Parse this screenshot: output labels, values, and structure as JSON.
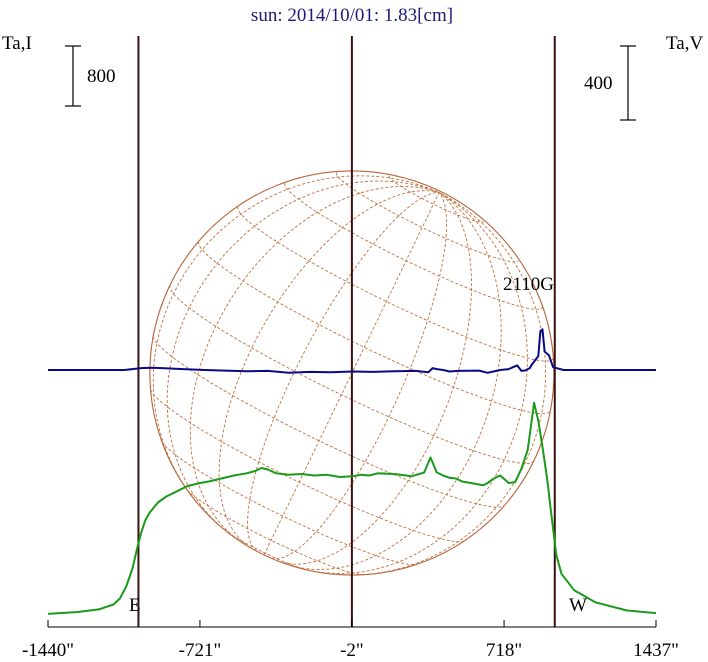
{
  "chart_data": {
    "type": "line",
    "title": "sun: 2014/10/01: 1.83[cm]",
    "left_axis_label": "Ta,I",
    "right_axis_label": "Ta,V",
    "left_scale_bar_label": "800",
    "right_scale_bar_label": "400",
    "x_unit": "arcsec",
    "x_ticks": [
      {
        "value": -1440,
        "label": "-1440\""
      },
      {
        "value": -721,
        "label": "-721\""
      },
      {
        "value": -2,
        "label": "-2\""
      },
      {
        "value": 718,
        "label": "718\""
      },
      {
        "value": 1437,
        "label": "1437\""
      }
    ],
    "xlim": [
      -1440,
      1437
    ],
    "vertical_markers": [
      -1012,
      -2,
      958
    ],
    "limb_labels": {
      "east": "E",
      "west": "W"
    },
    "annotation": {
      "text": "2110G",
      "x": 905
    },
    "disk": {
      "center_x": -2,
      "radius": 956,
      "grid": true
    },
    "series": [
      {
        "name": "I",
        "color": "#1a9a1a",
        "axis": "left",
        "x": [
          -1440,
          -1300,
          -1200,
          -1130,
          -1100,
          -1070,
          -1040,
          -1020,
          -1000,
          -980,
          -960,
          -920,
          -880,
          -830,
          -780,
          -720,
          -680,
          -620,
          -560,
          -500,
          -460,
          -430,
          -400,
          -360,
          -300,
          -240,
          -180,
          -120,
          -60,
          0,
          40,
          80,
          120,
          200,
          280,
          340,
          370,
          400,
          430,
          460,
          490,
          520,
          560,
          600,
          620,
          640,
          670,
          700,
          740,
          770,
          800,
          830,
          860,
          880,
          900,
          915,
          925,
          935,
          950,
          965,
          990,
          1050,
          1150,
          1300,
          1437
        ],
        "y": [
          15,
          40,
          75,
          140,
          220,
          380,
          620,
          870,
          1090,
          1260,
          1360,
          1500,
          1580,
          1650,
          1720,
          1760,
          1780,
          1820,
          1860,
          1890,
          1920,
          1960,
          1940,
          1890,
          1870,
          1880,
          1860,
          1870,
          1840,
          1850,
          1870,
          1860,
          1890,
          1880,
          1850,
          1900,
          2100,
          1900,
          1860,
          1830,
          1820,
          1780,
          1760,
          1740,
          1730,
          1760,
          1820,
          1860,
          1760,
          1770,
          1950,
          2200,
          2830,
          2590,
          2240,
          1950,
          1750,
          1500,
          1150,
          800,
          550,
          330,
          170,
          60,
          25
        ]
      },
      {
        "name": "V",
        "color": "#0a0a88",
        "axis": "right",
        "x": [
          -1440,
          -1080,
          -1040,
          -1000,
          -950,
          -900,
          -800,
          -700,
          -600,
          -500,
          -400,
          -300,
          -200,
          -100,
          0,
          100,
          200,
          300,
          360,
          380,
          400,
          430,
          460,
          500,
          600,
          640,
          660,
          700,
          740,
          760,
          780,
          800,
          820,
          840,
          850,
          860,
          870,
          880,
          890,
          900,
          910,
          920,
          930,
          950,
          1000,
          1100,
          1200,
          1437
        ],
        "y": [
          0,
          0,
          5,
          10,
          12,
          10,
          5,
          0,
          -3,
          -7,
          -5,
          -15,
          -10,
          -12,
          -8,
          -10,
          -7,
          -5,
          -12,
          10,
          5,
          0,
          -8,
          -5,
          -3,
          -15,
          -10,
          0,
          5,
          15,
          25,
          -5,
          -2,
          10,
          30,
          45,
          60,
          75,
          210,
          220,
          100,
          90,
          80,
          15,
          0,
          0,
          0,
          0
        ]
      }
    ]
  }
}
